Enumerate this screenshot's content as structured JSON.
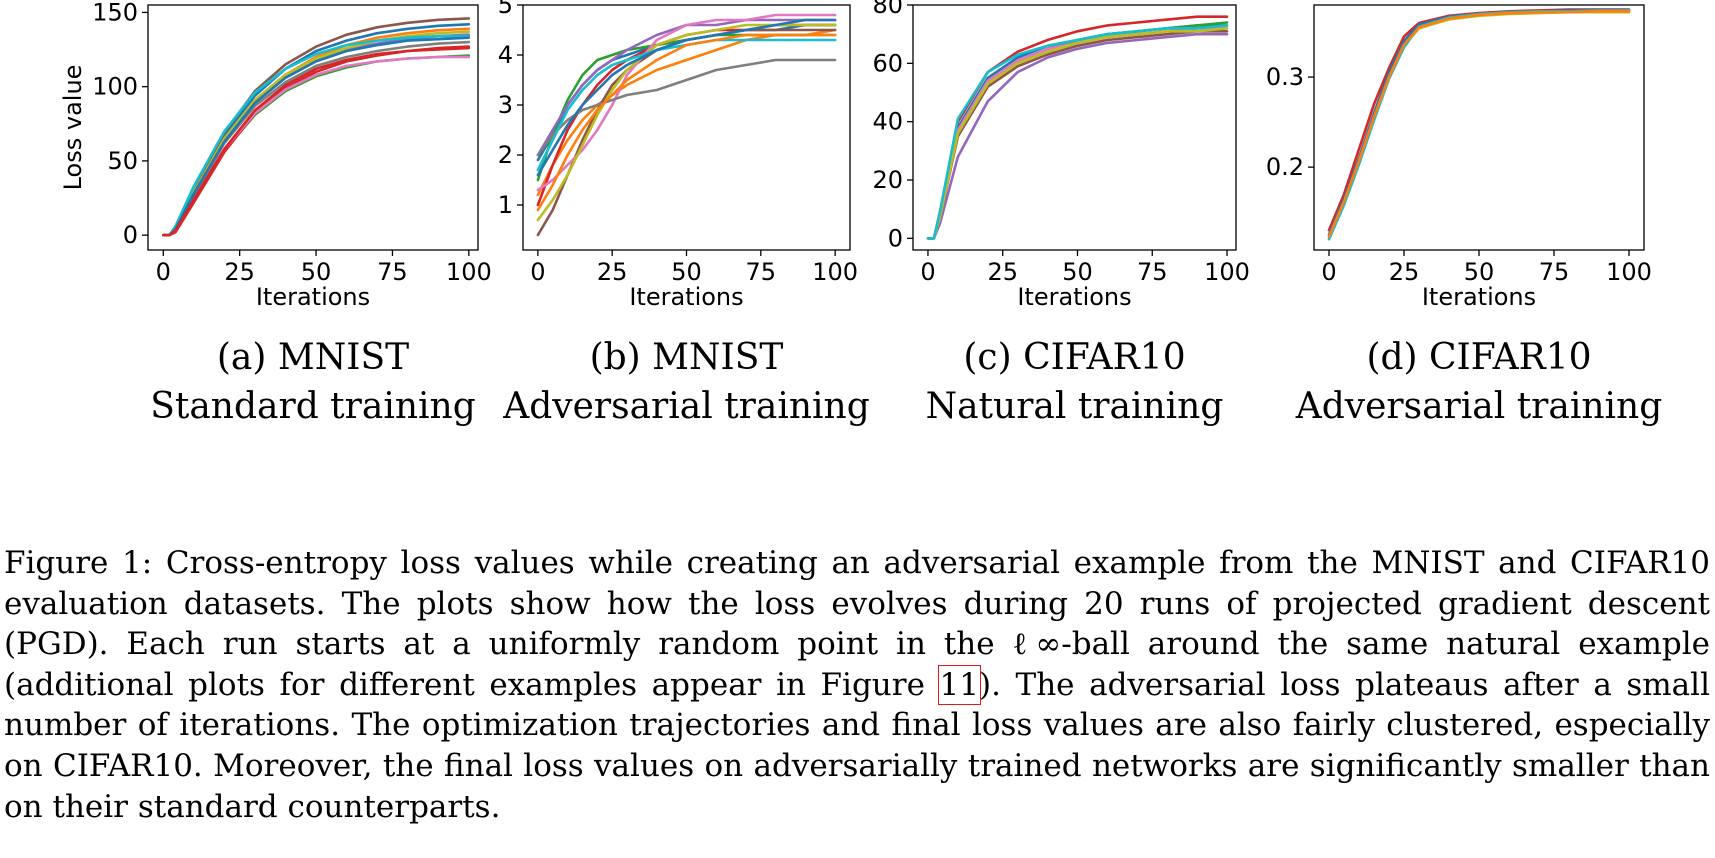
{
  "chart_data": [
    {
      "type": "line",
      "subcaption_line1": "(a) MNIST",
      "subcaption_line2": "Standard training",
      "xlabel": "Iterations",
      "ylabel": "Loss value",
      "xlim": [
        -5,
        103
      ],
      "ylim": [
        -10,
        155
      ],
      "xticks": [
        0,
        25,
        50,
        75,
        100
      ],
      "yticks": [
        0,
        50,
        100,
        150
      ],
      "x": [
        0,
        2,
        4,
        10,
        20,
        30,
        40,
        50,
        60,
        70,
        80,
        90,
        100
      ],
      "series": [
        {
          "color": "#1f77b4",
          "values": [
            0,
            0,
            5,
            30,
            67,
            94,
            112,
            124,
            131,
            136,
            139,
            141,
            142
          ]
        },
        {
          "color": "#ff7f0e",
          "values": [
            0,
            0,
            4,
            28,
            64,
            91,
            108,
            120,
            128,
            133,
            136,
            138,
            139
          ]
        },
        {
          "color": "#2ca02c",
          "values": [
            0,
            0,
            3,
            24,
            57,
            81,
            97,
            107,
            113,
            117,
            119,
            120,
            121
          ]
        },
        {
          "color": "#d62728",
          "values": [
            0,
            0,
            2,
            22,
            56,
            82,
            99,
            110,
            117,
            121,
            124,
            126,
            127
          ]
        },
        {
          "color": "#9467bd",
          "values": [
            0,
            0,
            4,
            28,
            64,
            90,
            107,
            118,
            125,
            129,
            132,
            134,
            135
          ]
        },
        {
          "color": "#8c564b",
          "values": [
            0,
            0,
            5,
            31,
            69,
            97,
            115,
            127,
            135,
            140,
            143,
            145,
            146
          ]
        },
        {
          "color": "#e377c2",
          "values": [
            0,
            0,
            3,
            25,
            58,
            82,
            98,
            108,
            114,
            117,
            119,
            120,
            120
          ]
        },
        {
          "color": "#7f7f7f",
          "values": [
            0,
            0,
            4,
            27,
            62,
            87,
            103,
            114,
            120,
            124,
            127,
            129,
            130
          ]
        },
        {
          "color": "#bcbd22",
          "values": [
            0,
            0,
            5,
            29,
            65,
            91,
            108,
            119,
            126,
            131,
            134,
            136,
            137
          ]
        },
        {
          "color": "#17becf",
          "values": [
            0,
            0,
            6,
            33,
            70,
            96,
            112,
            122,
            128,
            131,
            133,
            134,
            134
          ]
        },
        {
          "color": "#1f77b4",
          "values": [
            0,
            0,
            4,
            28,
            63,
            89,
            106,
            117,
            124,
            128,
            131,
            132,
            133
          ]
        },
        {
          "color": "#d62728",
          "values": [
            0,
            0,
            3,
            24,
            58,
            84,
            101,
            112,
            118,
            122,
            124,
            125,
            126
          ]
        }
      ]
    },
    {
      "type": "line",
      "subcaption_line1": "(b) MNIST",
      "subcaption_line2": "Adversarial training",
      "xlabel": "Iterations",
      "ylabel": "",
      "xlim": [
        -5,
        105
      ],
      "ylim": [
        0.1,
        5.0
      ],
      "xticks": [
        0,
        25,
        50,
        75,
        100
      ],
      "yticks": [
        1,
        2,
        3,
        4,
        5
      ],
      "x": [
        0,
        5,
        10,
        15,
        20,
        25,
        30,
        40,
        50,
        60,
        70,
        80,
        90,
        100
      ],
      "series": [
        {
          "color": "#1f77b4",
          "values": [
            1.9,
            2.4,
            3.0,
            3.4,
            3.7,
            3.9,
            4.0,
            4.2,
            4.3,
            4.4,
            4.5,
            4.5,
            4.6,
            4.6
          ]
        },
        {
          "color": "#ff7f0e",
          "values": [
            1.2,
            1.8,
            2.3,
            2.7,
            3.0,
            3.2,
            3.4,
            3.7,
            3.9,
            4.1,
            4.3,
            4.4,
            4.4,
            4.5
          ]
        },
        {
          "color": "#2ca02c",
          "values": [
            1.5,
            2.4,
            3.1,
            3.6,
            3.9,
            4.0,
            4.1,
            4.2,
            4.3,
            4.4,
            4.4,
            4.4,
            4.4,
            4.4
          ]
        },
        {
          "color": "#d62728",
          "values": [
            1.0,
            1.8,
            2.5,
            3.0,
            3.4,
            3.7,
            3.9,
            4.2,
            4.4,
            4.5,
            4.5,
            4.6,
            4.6,
            4.6
          ]
        },
        {
          "color": "#9467bd",
          "values": [
            2.0,
            2.5,
            3.0,
            3.4,
            3.7,
            3.9,
            4.1,
            4.4,
            4.6,
            4.6,
            4.7,
            4.7,
            4.7,
            4.7
          ]
        },
        {
          "color": "#8c564b",
          "values": [
            0.4,
            0.9,
            1.6,
            2.3,
            2.9,
            3.4,
            3.7,
            4.1,
            4.3,
            4.4,
            4.5,
            4.5,
            4.5,
            4.5
          ]
        },
        {
          "color": "#e377c2",
          "values": [
            1.3,
            1.5,
            1.8,
            2.1,
            2.5,
            3.0,
            3.6,
            4.3,
            4.6,
            4.7,
            4.7,
            4.8,
            4.8,
            4.8
          ]
        },
        {
          "color": "#7f7f7f",
          "values": [
            2.0,
            2.4,
            2.7,
            2.9,
            3.0,
            3.1,
            3.2,
            3.3,
            3.5,
            3.7,
            3.8,
            3.9,
            3.9,
            3.9
          ]
        },
        {
          "color": "#bcbd22",
          "values": [
            0.7,
            1.1,
            1.6,
            2.2,
            2.8,
            3.3,
            3.7,
            4.2,
            4.4,
            4.5,
            4.6,
            4.6,
            4.6,
            4.6
          ]
        },
        {
          "color": "#17becf",
          "values": [
            1.7,
            2.3,
            2.9,
            3.3,
            3.6,
            3.8,
            3.9,
            4.1,
            4.2,
            4.3,
            4.3,
            4.3,
            4.3,
            4.3
          ]
        },
        {
          "color": "#1f77b4",
          "values": [
            1.6,
            2.1,
            2.6,
            3.0,
            3.3,
            3.6,
            3.8,
            4.1,
            4.3,
            4.4,
            4.5,
            4.6,
            4.7,
            4.7
          ]
        },
        {
          "color": "#ff7f0e",
          "values": [
            0.9,
            1.4,
            2.0,
            2.5,
            2.9,
            3.2,
            3.5,
            3.9,
            4.2,
            4.3,
            4.4,
            4.4,
            4.4,
            4.4
          ]
        }
      ]
    },
    {
      "type": "line",
      "subcaption_line1": "(c) CIFAR10",
      "subcaption_line2": "Natural training",
      "xlabel": "Iterations",
      "ylabel": "",
      "xlim": [
        -5,
        103
      ],
      "ylim": [
        -4,
        80
      ],
      "xticks": [
        0,
        25,
        50,
        75,
        100
      ],
      "yticks": [
        0,
        20,
        40,
        60,
        80
      ],
      "x": [
        0,
        2,
        4,
        10,
        20,
        30,
        40,
        50,
        60,
        70,
        80,
        90,
        100
      ],
      "series": [
        {
          "color": "#1f77b4",
          "values": [
            0,
            0,
            8,
            38,
            55,
            62,
            66,
            68,
            70,
            71,
            72,
            73,
            73
          ]
        },
        {
          "color": "#ff7f0e",
          "values": [
            0,
            0,
            7,
            36,
            53,
            60,
            64,
            67,
            69,
            70,
            71,
            72,
            72
          ]
        },
        {
          "color": "#2ca02c",
          "values": [
            0,
            0,
            8,
            37,
            54,
            61,
            65,
            68,
            70,
            71,
            72,
            73,
            74
          ]
        },
        {
          "color": "#d62728",
          "values": [
            0,
            0,
            9,
            40,
            57,
            64,
            68,
            71,
            73,
            74,
            75,
            76,
            76
          ]
        },
        {
          "color": "#9467bd",
          "values": [
            0,
            0,
            5,
            28,
            47,
            57,
            62,
            65,
            67,
            68,
            69,
            70,
            70
          ]
        },
        {
          "color": "#8c564b",
          "values": [
            0,
            0,
            7,
            35,
            52,
            59,
            63,
            66,
            68,
            69,
            70,
            71,
            71
          ]
        },
        {
          "color": "#e377c2",
          "values": [
            0,
            0,
            8,
            37,
            54,
            61,
            65,
            67,
            69,
            70,
            71,
            72,
            72
          ]
        },
        {
          "color": "#bcbd22",
          "values": [
            0,
            0,
            7,
            36,
            53,
            60,
            64,
            67,
            69,
            70,
            71,
            71,
            72
          ]
        },
        {
          "color": "#17becf",
          "values": [
            0,
            0,
            9,
            41,
            57,
            63,
            66,
            68,
            70,
            71,
            72,
            72,
            73
          ]
        }
      ]
    },
    {
      "type": "line",
      "subcaption_line1": "(d) CIFAR10",
      "subcaption_line2": "Adversarial training",
      "xlabel": "Iterations",
      "ylabel": "",
      "xlim": [
        -5,
        105
      ],
      "ylim": [
        0.108,
        0.38
      ],
      "xticks": [
        0,
        25,
        50,
        75,
        100
      ],
      "yticks": [
        0.2,
        0.3
      ],
      "x": [
        0,
        5,
        10,
        15,
        20,
        25,
        30,
        40,
        50,
        60,
        70,
        80,
        90,
        100
      ],
      "series": [
        {
          "color": "#d62728",
          "values": [
            0.13,
            0.17,
            0.22,
            0.27,
            0.31,
            0.345,
            0.36,
            0.368,
            0.371,
            0.373,
            0.374,
            0.375,
            0.375,
            0.375
          ]
        },
        {
          "color": "#1f77b4",
          "values": [
            0.125,
            0.165,
            0.21,
            0.26,
            0.305,
            0.34,
            0.358,
            0.367,
            0.37,
            0.372,
            0.373,
            0.374,
            0.374,
            0.374
          ]
        },
        {
          "color": "#bcbd22",
          "values": [
            0.122,
            0.16,
            0.205,
            0.255,
            0.3,
            0.335,
            0.354,
            0.364,
            0.368,
            0.37,
            0.371,
            0.372,
            0.372,
            0.372
          ]
        },
        {
          "color": "#17becf",
          "values": [
            0.12,
            0.158,
            0.203,
            0.252,
            0.298,
            0.333,
            0.356,
            0.366,
            0.37,
            0.372,
            0.373,
            0.373,
            0.374,
            0.374
          ]
        },
        {
          "color": "#ff7f0e",
          "values": [
            0.123,
            0.162,
            0.207,
            0.256,
            0.3,
            0.336,
            0.355,
            0.365,
            0.369,
            0.371,
            0.372,
            0.372,
            0.373,
            0.373
          ]
        }
      ]
    }
  ],
  "caption": {
    "before_ref": "Figure 1: Cross-entropy loss values while creating an adversarial example from the MNIST and CIFAR10 evaluation datasets. The plots show how the loss evolves during 20 runs of projected gradient descent (PGD). Each run starts at a uniformly random point in the ℓ∞-ball around the same natural example (additional plots for different examples appear in Figure ",
    "ref": "11",
    "after_ref": "). The adversarial loss plateaus after a small number of iterations. The optimization trajectories and final loss values are also fairly clustered, especially on CIFAR10. Moreover, the final loss values on adversarially trained networks are significantly smaller than on their standard counterparts."
  }
}
